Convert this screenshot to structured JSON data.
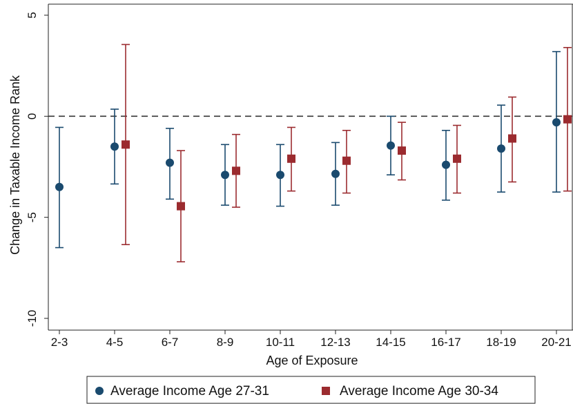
{
  "chart_data": {
    "type": "scatter",
    "title": "",
    "xlabel": "Age of Exposure",
    "ylabel": "Change in Taxable Income Rank",
    "ylim": [
      -10,
      5
    ],
    "yticks": [
      "5",
      "0",
      "-5",
      "-10"
    ],
    "ytick_values": [
      5,
      0,
      -5,
      -10
    ],
    "categories": [
      "2-3",
      "4-5",
      "6-7",
      "8-9",
      "10-11",
      "12-13",
      "14-15",
      "16-17",
      "18-19",
      "20-21"
    ],
    "reference_line": {
      "y": 0,
      "style": "dashed"
    },
    "grid": false,
    "legend_position": "bottom",
    "series": [
      {
        "name": "Average Income Age 27-31",
        "marker": "circle",
        "color": "#1a4a6e",
        "values": [
          -3.5,
          -1.5,
          -2.3,
          -2.9,
          -2.9,
          -2.85,
          -1.45,
          -2.4,
          -1.6,
          -0.3
        ],
        "ci_low": [
          -6.5,
          -3.35,
          -4.1,
          -4.4,
          -4.45,
          -4.4,
          -2.9,
          -4.15,
          -3.75,
          -3.75
        ],
        "ci_high": [
          -0.55,
          0.35,
          -0.6,
          -1.4,
          -1.4,
          -1.3,
          0.0,
          -0.7,
          0.55,
          3.2
        ]
      },
      {
        "name": "Average Income Age 30-34",
        "marker": "square",
        "color": "#9b2b2f",
        "values": [
          null,
          -1.4,
          -4.45,
          -2.7,
          -2.1,
          -2.2,
          -1.7,
          -2.1,
          -1.1,
          -0.15
        ],
        "ci_low": [
          null,
          -6.35,
          -7.2,
          -4.5,
          -3.7,
          -3.8,
          -3.15,
          -3.8,
          -3.25,
          -3.7
        ],
        "ci_high": [
          null,
          3.55,
          -1.7,
          -0.9,
          -0.55,
          -0.7,
          -0.3,
          -0.45,
          0.95,
          3.4
        ]
      }
    ]
  }
}
